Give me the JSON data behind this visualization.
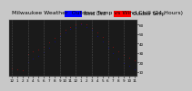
{
  "title": "Milwaukee Weather  Outdoor Temp vs Wind Chill (24 Hours)",
  "legend_temp": "Outdoor Temp",
  "legend_wc": "Wind Chill",
  "legend_color_temp": "#ff0000",
  "legend_color_wc": "#0000ff",
  "background_color": "#c8c8c8",
  "plot_bg": "#1a1a1a",
  "grid_color": "#555555",
  "title_color": "#000000",
  "hours": [
    0,
    1,
    2,
    3,
    4,
    5,
    6,
    7,
    8,
    9,
    10,
    11,
    12,
    13,
    14,
    15,
    16,
    17,
    18,
    19,
    20,
    21,
    22,
    23
  ],
  "temp": [
    14,
    13,
    12,
    29,
    32,
    34,
    37,
    41,
    46,
    51,
    55,
    58,
    60,
    61,
    60,
    57,
    52,
    47,
    42,
    37,
    32,
    28,
    25,
    22
  ],
  "wind_chill": [
    null,
    null,
    null,
    20,
    24,
    27,
    31,
    36,
    42,
    48,
    52,
    56,
    58,
    60,
    58,
    55,
    48,
    42,
    36,
    30,
    24,
    19,
    16,
    13
  ],
  "ylim_min": 5,
  "ylim_max": 65,
  "xlim_min": -0.5,
  "xlim_max": 23.5,
  "xtick_positions": [
    0,
    1,
    2,
    3,
    4,
    5,
    6,
    7,
    8,
    9,
    10,
    11,
    12,
    13,
    14,
    15,
    16,
    17,
    18,
    19,
    20,
    21,
    22,
    23
  ],
  "xtick_labels": [
    "12",
    "1",
    "2",
    "3",
    "4",
    "5",
    "6",
    "7",
    "8",
    "9",
    "10",
    "11",
    "12",
    "1",
    "2",
    "3",
    "4",
    "5",
    "6",
    "7",
    "8",
    "9",
    "10",
    "11"
  ],
  "ytick_positions": [
    10,
    20,
    30,
    40,
    50,
    60
  ],
  "ytick_labels": [
    "10",
    "20",
    "30",
    "40",
    "50",
    "60"
  ],
  "title_fontsize": 4.5,
  "tick_fontsize": 3.0,
  "legend_fontsize": 3.5,
  "dot_size": 0.8
}
